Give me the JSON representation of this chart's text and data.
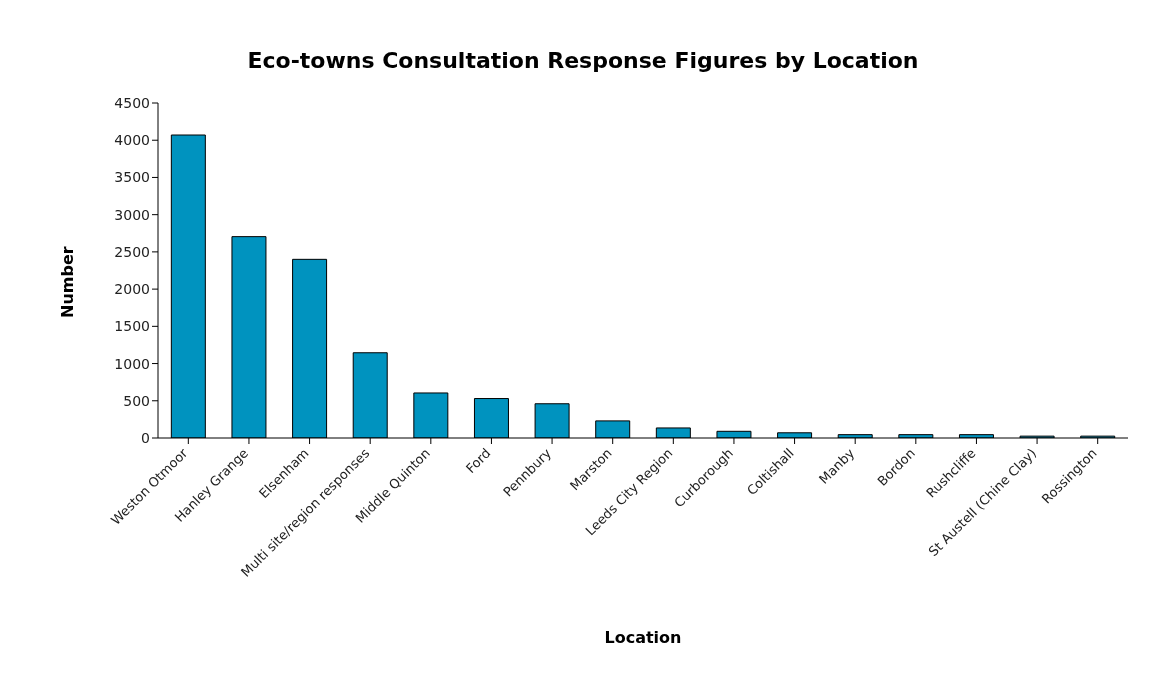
{
  "chart_data": {
    "type": "bar",
    "title": "Eco-towns Consultation Response Figures by Location",
    "xlabel": "Location",
    "ylabel": "Number",
    "categories": [
      "Weston Otmoor",
      "Hanley Grange",
      "Elsenham",
      "Multi site/region responses",
      "Middle Quinton",
      "Ford",
      "Pennbury",
      "Marston",
      "Leeds City Region",
      "Curborough",
      "Coltishall",
      "Manby",
      "Bordon",
      "Rushcliffe",
      "St Austell (Chine Clay)",
      "Rossington"
    ],
    "values": [
      4070,
      2705,
      2400,
      1145,
      605,
      530,
      460,
      230,
      135,
      90,
      70,
      45,
      45,
      45,
      25,
      25
    ],
    "color": "#0093bf",
    "ylim": [
      0,
      4500
    ],
    "yticks": [
      0,
      500,
      1000,
      1500,
      2000,
      2500,
      3000,
      3500,
      4000,
      4500
    ],
    "grid": false,
    "legend": false
  }
}
